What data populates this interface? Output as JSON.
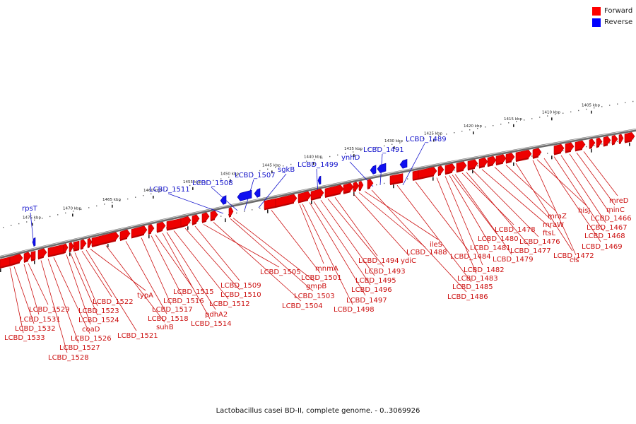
{
  "caption": "Lactobacillus casei BD-II, complete genome. - 0..3069926",
  "legend": [
    {
      "label": "Forward",
      "color": "#ff0000"
    },
    {
      "label": "Reverse",
      "color": "#0000ff"
    }
  ],
  "colors": {
    "forward": "#ee0000",
    "forward_dark": "#b80000",
    "reverse": "#1010f0",
    "reverse_dark": "#0000a8",
    "forward_label": "#cc1111",
    "reverse_label": "#1111cc",
    "axis": "#777777"
  },
  "ticks": [
    "1475 kbp",
    "1470 kbp",
    "1465 kbp",
    "1460 kbp",
    "1455 kbp",
    "1450 kbp",
    "1445 kbp",
    "1440 kbp",
    "1435 kbp",
    "1430 kbp",
    "1425 kbp",
    "1420 kbp",
    "1415 kbp",
    "1410 kbp",
    "1405 kbp"
  ],
  "genes": {
    "reverse": [
      "rpsT",
      "LCBD_1511",
      "LCBD_1508",
      "LCBD_1507",
      "sgkB",
      "LCBD_1499",
      "ynhD",
      "LCBD_1491",
      "LCBD_1489"
    ],
    "forward": [
      "LCBD_1533",
      "LCBD_1532",
      "LCBD_1531",
      "LCBD_1529",
      "LCBD_1528",
      "LCBD_1527",
      "LCBD_1526",
      "coaD",
      "LCBD_1524",
      "LCBD_1523",
      "LCBD_1522",
      "LCBD_1521",
      "typA",
      "suhB",
      "LCBD_1518",
      "LCBD_1517",
      "LCBD_1516",
      "LCBD_1515",
      "LCBD_1514",
      "pdhA2",
      "LCBD_1512",
      "LCBD_1510",
      "LCBD_1509",
      "LCBD_1505",
      "LCBD_1504",
      "LCBD_1503",
      "gmpB",
      "LCBD_1501",
      "mnmA",
      "LCBD_1498",
      "LCBD_1497",
      "LCBD_1496",
      "LCBD_1495",
      "LCBD_1493",
      "LCBD_1494",
      "ydiC",
      "LCBD_1488",
      "ileS",
      "LCBD_1486",
      "LCBD_1485",
      "LCBD_1484",
      "LCBD_1483",
      "LCBD_1482",
      "LCBD_1481",
      "LCBD_1480",
      "LCBD_1479",
      "LCBD_1478",
      "LCBD_1477",
      "LCBD_1476",
      "ftsL",
      "mraW",
      "mraZ",
      "LCBD_1472",
      "cls",
      "hisJ",
      "LCBD_1469",
      "LCBD_1468",
      "LCBD_1467",
      "LCBD_1466",
      "minC",
      "mreD"
    ]
  }
}
